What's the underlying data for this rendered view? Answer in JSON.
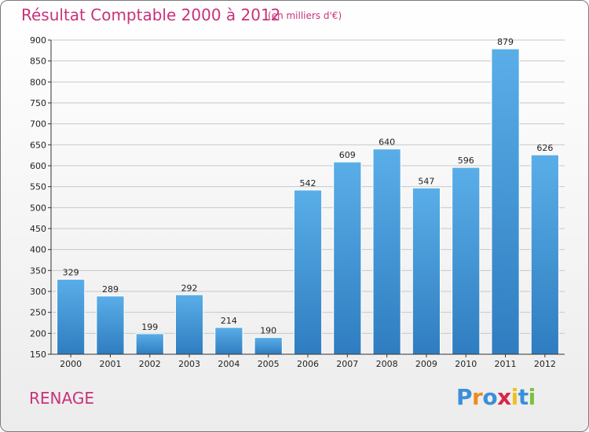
{
  "header": {
    "title": "Résultat Comptable 2000 à 2012",
    "subtitle": "(en milliers d'€)"
  },
  "footer": {
    "commune": "RENAGE",
    "logo": {
      "letters": [
        "P",
        "r",
        "o",
        "x",
        "i",
        "t",
        "i"
      ],
      "colors": [
        "#3b8fd8",
        "#f08a1e",
        "#3b8fd8",
        "#d8264a",
        "#f0c020",
        "#3b8fd8",
        "#7cc03c"
      ]
    }
  },
  "chart_data": {
    "type": "bar",
    "categories": [
      "2000",
      "2001",
      "2002",
      "2003",
      "2004",
      "2005",
      "2006",
      "2007",
      "2008",
      "2009",
      "2010",
      "2011",
      "2012"
    ],
    "values": [
      329,
      289,
      199,
      292,
      214,
      190,
      542,
      609,
      640,
      547,
      596,
      879,
      626
    ],
    "data_labels": [
      "329",
      "289",
      "199",
      "292",
      "214",
      "190",
      "542",
      "609",
      "640",
      "547",
      "596",
      "879",
      "626"
    ],
    "ylim": [
      150,
      900
    ],
    "yticks": [
      150,
      200,
      250,
      300,
      350,
      400,
      450,
      500,
      550,
      600,
      650,
      700,
      750,
      800,
      850,
      900
    ],
    "grid": true,
    "colors": {
      "bar_top": "#5aaee8",
      "bar_bottom": "#2f7dc0",
      "grid": "#c8c8c8",
      "axis": "#333333"
    }
  }
}
